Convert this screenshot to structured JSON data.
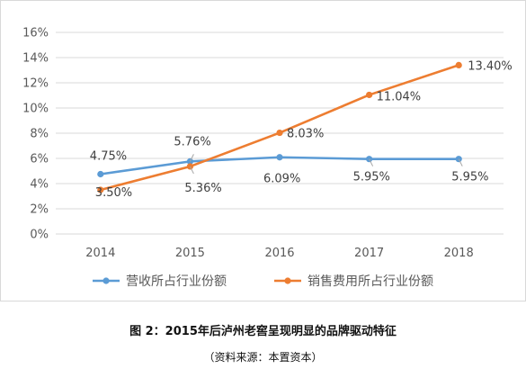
{
  "chart_data": {
    "type": "line",
    "categories": [
      "2014",
      "2015",
      "2016",
      "2017",
      "2018"
    ],
    "ylim": [
      0,
      16
    ],
    "yticks": [
      0,
      2,
      4,
      6,
      8,
      10,
      12,
      14,
      16
    ],
    "ytick_labels": [
      "0%",
      "2%",
      "4%",
      "6%",
      "8%",
      "10%",
      "12%",
      "14%",
      "16%"
    ],
    "grid": true,
    "legend_position": "bottom",
    "series": [
      {
        "name": "营收所占行业份额",
        "color": "#5b9bd5",
        "values": [
          4.75,
          5.76,
          6.09,
          5.95,
          5.95
        ],
        "labels": [
          "4.75%",
          "5.76%",
          "6.09%",
          "5.95%",
          "5.95%"
        ]
      },
      {
        "name": "销售费用所占行业份额",
        "color": "#ed7d31",
        "values": [
          3.5,
          5.36,
          8.03,
          11.04,
          13.4
        ],
        "labels": [
          "3.50%",
          "5.36%",
          "8.03%",
          "11.04%",
          "13.40%"
        ]
      }
    ]
  },
  "caption": {
    "title": "图 2：2015年后泸州老窖呈现明显的品牌驱动特征",
    "source": "（资料来源：本置资本）"
  }
}
